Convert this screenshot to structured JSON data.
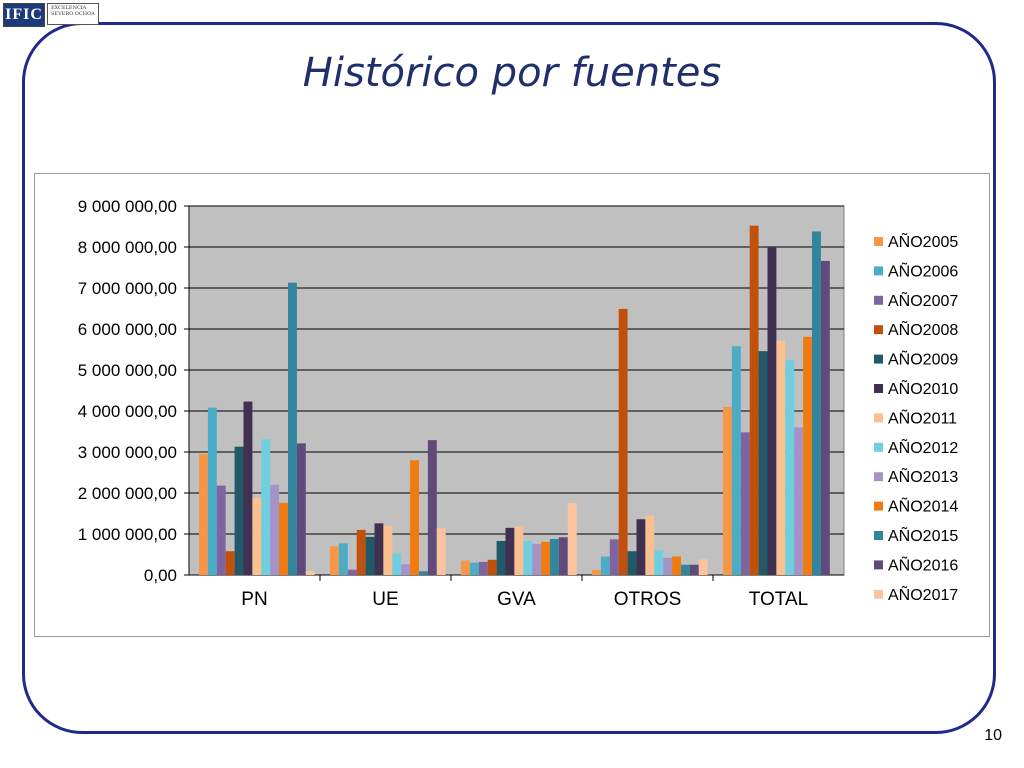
{
  "slide": {
    "title": "Histórico por fuentes",
    "page_number": "10",
    "logo": {
      "name": "IFIC",
      "seal_text": "EXCELENCIA SEVERO OCHOA"
    }
  },
  "colors": {
    "frame": "#1f2a8c",
    "title": "#1f2f6b",
    "plot_background": "#c0c0c0"
  },
  "chart_data": {
    "type": "bar",
    "categories": [
      "PN",
      "UE",
      "GVA",
      "OTROS",
      "TOTAL"
    ],
    "ylim": [
      0,
      9000000
    ],
    "yticks": [
      "0,00",
      "1 000 000,00",
      "2 000 000,00",
      "3 000 000,00",
      "4 000 000,00",
      "5 000 000,00",
      "6 000 000,00",
      "7 000 000,00",
      "8 000 000,00",
      "9 000 000,00"
    ],
    "grid": true,
    "legend_position": "right",
    "series": [
      {
        "name": "AÑO2005",
        "color": "#f79646",
        "values": [
          2950000,
          700000,
          350000,
          120000,
          4100000
        ]
      },
      {
        "name": "AÑO2006",
        "color": "#4bacc6",
        "values": [
          4080000,
          770000,
          300000,
          450000,
          5580000
        ]
      },
      {
        "name": "AÑO2007",
        "color": "#8064a2",
        "values": [
          2180000,
          130000,
          320000,
          870000,
          3480000
        ]
      },
      {
        "name": "AÑO2008",
        "color": "#c0500a",
        "values": [
          580000,
          1100000,
          370000,
          6490000,
          8520000
        ]
      },
      {
        "name": "AÑO2009",
        "color": "#215968",
        "values": [
          3130000,
          930000,
          830000,
          580000,
          5460000
        ]
      },
      {
        "name": "AÑO2010",
        "color": "#403152",
        "values": [
          4230000,
          1260000,
          1150000,
          1360000,
          8000000
        ]
      },
      {
        "name": "AÑO2011",
        "color": "#fac090",
        "values": [
          1880000,
          1200000,
          1190000,
          1450000,
          5720000
        ]
      },
      {
        "name": "AÑO2012",
        "color": "#6fcfe0",
        "values": [
          3310000,
          520000,
          830000,
          600000,
          5240000
        ]
      },
      {
        "name": "AÑO2013",
        "color": "#a593c7",
        "values": [
          2200000,
          260000,
          760000,
          420000,
          3600000
        ]
      },
      {
        "name": "AÑO2014",
        "color": "#f07c11",
        "values": [
          1760000,
          2800000,
          810000,
          450000,
          5810000
        ]
      },
      {
        "name": "AÑO2015",
        "color": "#31859c",
        "values": [
          7130000,
          90000,
          880000,
          250000,
          8380000
        ]
      },
      {
        "name": "AÑO2016",
        "color": "#604a7b",
        "values": [
          3210000,
          3290000,
          920000,
          250000,
          7660000
        ]
      },
      {
        "name": "AÑO2017",
        "color": "#fbc49e",
        "values": [
          100000,
          1140000,
          1750000,
          380000,
          0
        ]
      }
    ]
  }
}
